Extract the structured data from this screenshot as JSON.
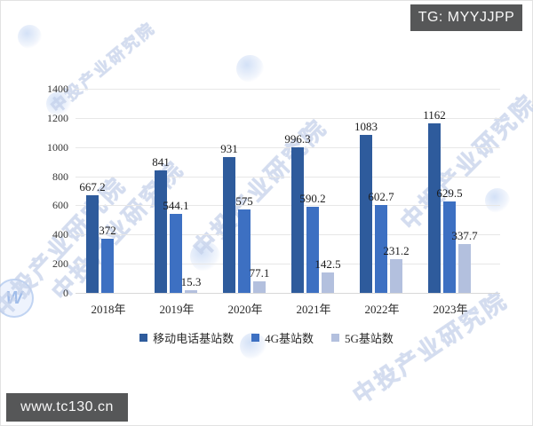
{
  "badges": {
    "tg": "TG: MYYJJPP",
    "url": "www.tc130.cn"
  },
  "watermark": {
    "text": "中投产业研究院",
    "logo_letter": "W"
  },
  "chart_data": {
    "type": "bar",
    "title": "",
    "xlabel": "",
    "ylabel": "",
    "categories": [
      "2018年",
      "2019年",
      "2020年",
      "2021年",
      "2022年",
      "2023年"
    ],
    "series": [
      {
        "name": "移动电话基站数",
        "color": "#2e5b9c",
        "values": [
          667.2,
          841,
          931,
          996.3,
          1083,
          1162
        ]
      },
      {
        "name": "4G基站数",
        "color": "#3d70c2",
        "values": [
          372,
          544.1,
          575,
          590.2,
          602.7,
          629.5
        ]
      },
      {
        "name": "5G基站数",
        "color": "#b3c0de",
        "values": [
          null,
          15.3,
          77.1,
          142.5,
          231.2,
          337.7
        ]
      }
    ],
    "ylim": [
      0,
      1400
    ],
    "yticks": [
      0,
      200,
      400,
      600,
      800,
      1000,
      1200,
      1400
    ],
    "grid": true,
    "legend_position": "bottom"
  }
}
